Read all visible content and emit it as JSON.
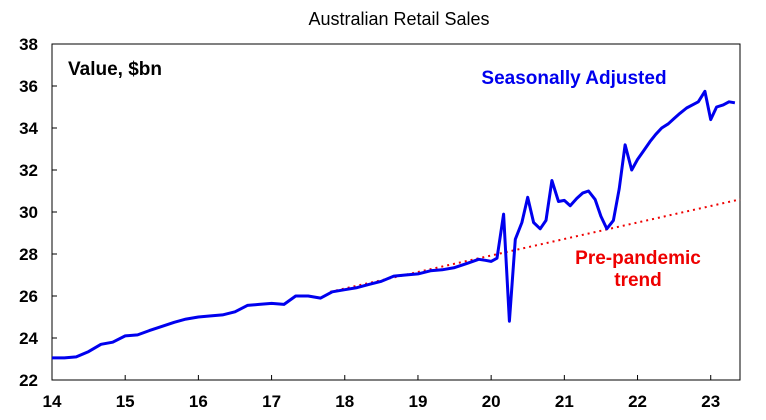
{
  "chart_data": {
    "type": "line",
    "title": "Australian Retail Sales",
    "ylabel": "Value, $bn",
    "xlabel": "",
    "xlim": [
      14,
      23.4
    ],
    "ylim": [
      22,
      38
    ],
    "x_ticks": [
      "14",
      "15",
      "16",
      "17",
      "18",
      "19",
      "20",
      "21",
      "22",
      "23"
    ],
    "y_ticks": [
      "22",
      "24",
      "26",
      "28",
      "30",
      "32",
      "34",
      "36",
      "38"
    ],
    "grid": false,
    "series": [
      {
        "name": "Seasonally Adjusted",
        "color": "#0000ee",
        "style": "solid",
        "points": [
          [
            14.0,
            23.05
          ],
          [
            14.17,
            23.05
          ],
          [
            14.33,
            23.1
          ],
          [
            14.5,
            23.35
          ],
          [
            14.67,
            23.7
          ],
          [
            14.83,
            23.8
          ],
          [
            15.0,
            24.1
          ],
          [
            15.17,
            24.15
          ],
          [
            15.33,
            24.35
          ],
          [
            15.5,
            24.55
          ],
          [
            15.67,
            24.75
          ],
          [
            15.83,
            24.9
          ],
          [
            16.0,
            25.0
          ],
          [
            16.17,
            25.05
          ],
          [
            16.33,
            25.1
          ],
          [
            16.5,
            25.25
          ],
          [
            16.67,
            25.55
          ],
          [
            16.83,
            25.6
          ],
          [
            17.0,
            25.65
          ],
          [
            17.17,
            25.6
          ],
          [
            17.33,
            26.0
          ],
          [
            17.5,
            26.0
          ],
          [
            17.67,
            25.9
          ],
          [
            17.83,
            26.2
          ],
          [
            18.0,
            26.3
          ],
          [
            18.17,
            26.4
          ],
          [
            18.33,
            26.55
          ],
          [
            18.5,
            26.7
          ],
          [
            18.67,
            26.95
          ],
          [
            18.83,
            27.0
          ],
          [
            19.0,
            27.05
          ],
          [
            19.17,
            27.2
          ],
          [
            19.33,
            27.25
          ],
          [
            19.5,
            27.35
          ],
          [
            19.67,
            27.55
          ],
          [
            19.83,
            27.75
          ],
          [
            19.92,
            27.7
          ],
          [
            20.0,
            27.65
          ],
          [
            20.08,
            27.8
          ],
          [
            20.17,
            29.9
          ],
          [
            20.25,
            24.8
          ],
          [
            20.33,
            28.7
          ],
          [
            20.42,
            29.5
          ],
          [
            20.5,
            30.7
          ],
          [
            20.58,
            29.5
          ],
          [
            20.67,
            29.2
          ],
          [
            20.75,
            29.6
          ],
          [
            20.83,
            31.5
          ],
          [
            20.92,
            30.5
          ],
          [
            21.0,
            30.55
          ],
          [
            21.08,
            30.3
          ],
          [
            21.17,
            30.65
          ],
          [
            21.25,
            30.9
          ],
          [
            21.33,
            31.0
          ],
          [
            21.42,
            30.6
          ],
          [
            21.5,
            29.8
          ],
          [
            21.58,
            29.2
          ],
          [
            21.67,
            29.6
          ],
          [
            21.75,
            31.1
          ],
          [
            21.83,
            33.2
          ],
          [
            21.92,
            32.0
          ],
          [
            22.0,
            32.5
          ],
          [
            22.08,
            32.9
          ],
          [
            22.17,
            33.35
          ],
          [
            22.25,
            33.7
          ],
          [
            22.33,
            34.0
          ],
          [
            22.42,
            34.2
          ],
          [
            22.5,
            34.45
          ],
          [
            22.58,
            34.7
          ],
          [
            22.67,
            34.95
          ],
          [
            22.75,
            35.1
          ],
          [
            22.83,
            35.25
          ],
          [
            22.92,
            35.75
          ],
          [
            23.0,
            34.4
          ],
          [
            23.08,
            35.0
          ],
          [
            23.17,
            35.1
          ],
          [
            23.25,
            35.25
          ],
          [
            23.33,
            35.2
          ]
        ]
      },
      {
        "name": "Pre-pandemic trend",
        "color": "#ee0000",
        "style": "dotted",
        "points": [
          [
            17.8,
            26.2
          ],
          [
            23.4,
            30.6
          ]
        ]
      }
    ],
    "annotations": [
      {
        "text": "Seasonally Adjusted",
        "color": "#0000ee"
      },
      {
        "text": "Pre-pandemic",
        "color": "#ee0000"
      },
      {
        "text": "trend",
        "color": "#ee0000"
      }
    ]
  }
}
